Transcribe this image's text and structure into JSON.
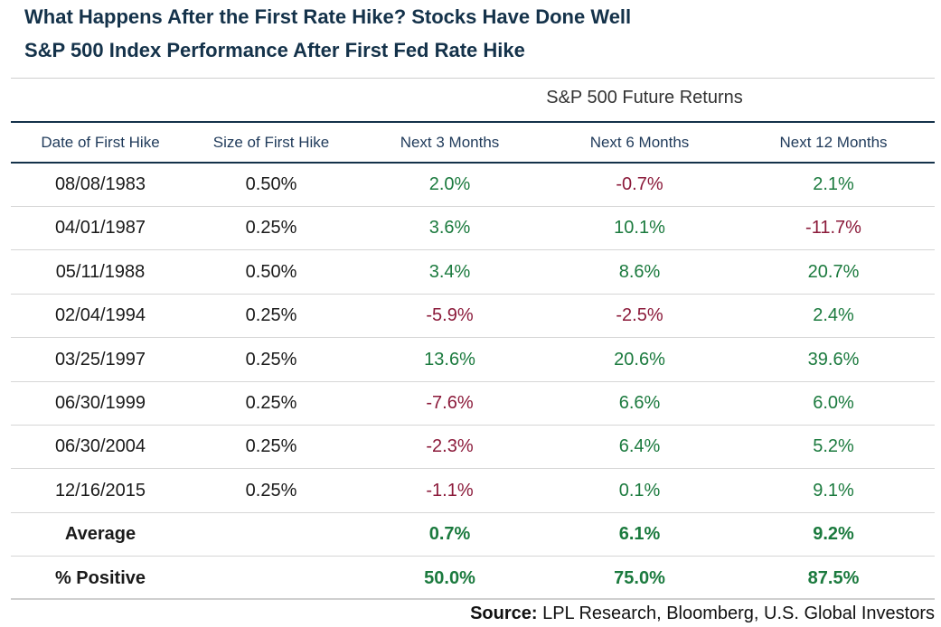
{
  "title": "What Happens After the First Rate Hike? Stocks Have Done Well",
  "subtitle": "S&P 500 Index Performance After First Fed Rate Hike",
  "colors": {
    "title": "#14324a",
    "positive": "#1b7a3e",
    "negative": "#8b1a3a",
    "rule": "#14324a"
  },
  "chart_data": {
    "type": "table",
    "group_header": "S&P 500 Future Returns",
    "columns": [
      "Date of First Hike",
      "Size of First Hike",
      "Next 3 Months",
      "Next 6 Months",
      "Next 12 Months"
    ],
    "rows": [
      [
        "08/08/1983",
        "0.50%",
        "2.0%",
        "-0.7%",
        "2.1%"
      ],
      [
        "04/01/1987",
        "0.25%",
        "3.6%",
        "10.1%",
        "-11.7%"
      ],
      [
        "05/11/1988",
        "0.50%",
        "3.4%",
        "8.6%",
        "20.7%"
      ],
      [
        "02/04/1994",
        "0.25%",
        "-5.9%",
        "-2.5%",
        "2.4%"
      ],
      [
        "03/25/1997",
        "0.25%",
        "13.6%",
        "20.6%",
        "39.6%"
      ],
      [
        "06/30/1999",
        "0.25%",
        "-7.6%",
        "6.6%",
        "6.0%"
      ],
      [
        "06/30/2004",
        "0.25%",
        "-2.3%",
        "6.4%",
        "5.2%"
      ],
      [
        "12/16/2015",
        "0.25%",
        "-1.1%",
        "0.1%",
        "9.1%"
      ]
    ],
    "summary_rows": [
      [
        "Average",
        "",
        "0.7%",
        "6.1%",
        "9.2%"
      ],
      [
        "% Positive",
        "",
        "50.0%",
        "75.0%",
        "87.5%"
      ]
    ]
  },
  "source": {
    "label": "Source:",
    "text": " LPL Research, Bloomberg, U.S. Global Investors"
  }
}
